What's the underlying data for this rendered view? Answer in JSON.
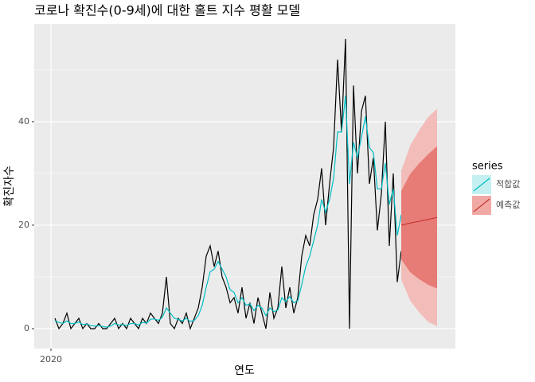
{
  "chart_data": {
    "type": "line",
    "title": "코로나 확진수(0-9세)에 대한 홀트 지수 평활 모델",
    "x_label": "연도",
    "y_label": "확진자수",
    "legend_title": "series",
    "legend_position": "right",
    "xlim": [
      2019.958,
      2021.016
    ],
    "xticks": [
      {
        "value": 2020,
        "label": "2020"
      }
    ],
    "ylim": [
      -3.85,
      58.9
    ],
    "yticks": [
      0,
      20,
      40
    ],
    "yminor": [
      10,
      30,
      50
    ],
    "grid": true,
    "x": [
      2020.01,
      2020.02,
      2020.03,
      2020.04,
      2020.05,
      2020.06,
      2020.07,
      2020.08,
      2020.09,
      2020.1,
      2020.11,
      2020.12,
      2020.13,
      2020.14,
      2020.15,
      2020.16,
      2020.17,
      2020.18,
      2020.19,
      2020.2,
      2020.21,
      2020.22,
      2020.23,
      2020.24,
      2020.25,
      2020.26,
      2020.27,
      2020.28,
      2020.29,
      2020.3,
      2020.31,
      2020.32,
      2020.33,
      2020.34,
      2020.35,
      2020.36,
      2020.37,
      2020.38,
      2020.39,
      2020.4,
      2020.41,
      2020.42,
      2020.43,
      2020.44,
      2020.45,
      2020.46,
      2020.47,
      2020.48,
      2020.49,
      2020.5,
      2020.51,
      2020.52,
      2020.53,
      2020.54,
      2020.55,
      2020.56,
      2020.57,
      2020.58,
      2020.59,
      2020.6,
      2020.61,
      2020.62,
      2020.63,
      2020.64,
      2020.65,
      2020.66,
      2020.67,
      2020.68,
      2020.69,
      2020.7,
      2020.71,
      2020.72,
      2020.73,
      2020.74,
      2020.75,
      2020.76,
      2020.77,
      2020.78,
      2020.79,
      2020.8,
      2020.81,
      2020.82,
      2020.83,
      2020.84,
      2020.85,
      2020.86,
      2020.87,
      2020.88
    ],
    "series": [
      {
        "color": "#000000",
        "values": [
          2,
          0,
          1,
          3,
          0,
          1,
          2,
          0,
          1,
          0,
          0,
          1,
          0,
          0,
          1,
          2,
          0,
          1,
          0,
          2,
          1,
          0,
          2,
          1,
          3,
          2,
          1,
          3,
          10,
          1,
          0,
          2,
          1,
          3,
          0,
          2,
          4,
          8,
          14,
          16,
          12,
          15,
          10,
          8,
          5,
          6,
          3,
          8,
          2,
          5,
          1,
          6,
          3,
          0,
          7,
          2,
          4,
          12,
          4,
          8,
          3,
          6,
          14,
          18,
          16,
          22,
          25,
          31,
          20,
          28,
          35,
          52,
          38,
          56,
          0,
          47,
          30,
          42,
          45,
          28,
          33,
          19,
          26,
          40,
          16,
          30,
          9,
          15
        ]
      },
      {
        "name": "적합값",
        "color": "#00BFC4",
        "fill": "#c5f0f1",
        "values": [
          1.5,
          1.2,
          1,
          1.5,
          1,
          1,
          1.3,
          0.8,
          0.9,
          0.6,
          0.5,
          0.6,
          0.4,
          0.3,
          0.5,
          1,
          0.7,
          0.8,
          0.6,
          1,
          1,
          0.7,
          1.2,
          1.1,
          1.8,
          1.9,
          1.6,
          2.2,
          4,
          3,
          2,
          1.8,
          1.5,
          2,
          1.4,
          1.6,
          2.5,
          4.5,
          8,
          11,
          11.5,
          13,
          11.5,
          10,
          7.5,
          7,
          5,
          6,
          4.5,
          4.8,
          3.5,
          4.5,
          4,
          2.5,
          4,
          3.3,
          3.6,
          6,
          5.2,
          6.2,
          5,
          5.4,
          8.5,
          12,
          14,
          17,
          20,
          25,
          22.5,
          25,
          29,
          38,
          38,
          45,
          28,
          36,
          33,
          37,
          41,
          35,
          34,
          27,
          27,
          32,
          24,
          27,
          18,
          22
        ]
      },
      {
        "name": "예측값",
        "color": "#c8352e",
        "fill": "#f1a9a5",
        "x": [
          2020.88,
          2020.9025,
          2020.925,
          2020.9475,
          2020.97
        ],
        "values": [
          20,
          20.4,
          20.75,
          21.1,
          21.5
        ],
        "bands": [
          {
            "color": "#f2bdb9",
            "lower": [
              9.5,
              5.4,
              3.15,
              1.3,
              0.5
            ],
            "upper": [
              30.5,
              35.4,
              38.35,
              40.9,
              42.5
            ]
          },
          {
            "color": "#e77b76",
            "lower": [
              13.4,
              10.9,
              9.55,
              8.5,
              7.75
            ],
            "upper": [
              26.6,
              29.9,
              31.95,
              33.7,
              35.25
            ]
          }
        ]
      }
    ]
  }
}
